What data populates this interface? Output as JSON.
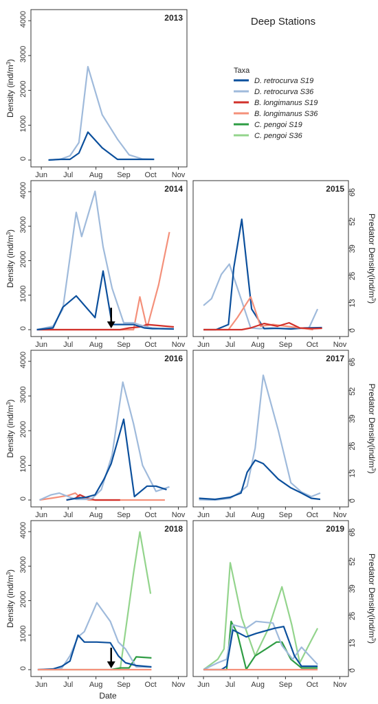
{
  "title": "Deep Stations",
  "legend": {
    "title": "Taxa",
    "placement": "right of top-left panel"
  },
  "axes": {
    "xlabel": "Date",
    "ylabel_left_main": "Density (ind/m",
    "ylabel_left_sup": "3",
    "ylabel_left_end": ")",
    "ylabel_right_main": "Predator Density(ind/m",
    "ylabel_right_sup": "3",
    "ylabel_right_end": ")",
    "month_ticks": [
      "Jun",
      "Jul",
      "Aug",
      "Sep",
      "Oct",
      "Nov"
    ],
    "left_ticks": [
      0,
      1000,
      2000,
      3000,
      4000
    ],
    "right_ticks": [
      0,
      13,
      26,
      39,
      52,
      66
    ],
    "left_ylim": [
      0,
      4200
    ],
    "right_ylim": [
      0,
      69.3
    ],
    "xlim_doy": [
      145,
      310
    ]
  },
  "colors": {
    "D. retrocurva S19": "#0b4f9c",
    "D. retrocurva S36": "#9fbadb",
    "B. longimanus S19": "#d1302a",
    "B. longimanus S36": "#f4907a",
    "C. pengoi S19": "#2e9c43",
    "C. pengoi S36": "#93d48c"
  },
  "chart_data": [
    {
      "type": "line",
      "title": "2013",
      "x_unit": "day of year",
      "right_axis": false,
      "arrow_x": null,
      "series": [
        {
          "name": "D. retrocurva S36",
          "x": [
            160,
            173,
            184,
            194,
            204,
            220,
            237,
            250,
            265,
            278
          ],
          "y": [
            0,
            20,
            120,
            500,
            2680,
            1300,
            600,
            150,
            30,
            20
          ]
        },
        {
          "name": "D. retrocurva S19",
          "x": [
            160,
            173,
            184,
            194,
            204,
            220,
            237,
            250,
            265,
            278
          ],
          "y": [
            0,
            20,
            20,
            200,
            800,
            350,
            20,
            20,
            20,
            20
          ]
        }
      ]
    },
    {
      "type": "line",
      "title": "2014",
      "x_unit": "day of year",
      "right_axis": false,
      "arrow_x": 230,
      "series": [
        {
          "name": "B. longimanus S36",
          "x": [
            147,
            160,
            180,
            200,
            220,
            240,
            255,
            262,
            270,
            283,
            295
          ],
          "y": [
            0,
            0,
            0,
            0,
            0,
            0,
            0,
            950,
            50,
            1300,
            2830
          ]
        },
        {
          "name": "B. longimanus S19",
          "x": [
            147,
            160,
            180,
            200,
            220,
            240,
            250,
            262,
            270,
            283,
            300
          ],
          "y": [
            0,
            0,
            0,
            0,
            0,
            0,
            50,
            80,
            150,
            120,
            80
          ]
        },
        {
          "name": "D. retrocurva S36",
          "x": [
            147,
            165,
            176,
            191,
            197,
            212,
            221,
            231,
            244,
            255,
            267,
            276,
            288,
            300
          ],
          "y": [
            0,
            100,
            600,
            3400,
            2700,
            4010,
            2400,
            1200,
            200,
            200,
            100,
            50,
            20,
            20
          ]
        },
        {
          "name": "D. retrocurva S19",
          "x": [
            147,
            165,
            176,
            191,
            212,
            221,
            231,
            244,
            255,
            267,
            276,
            288,
            300
          ],
          "y": [
            0,
            50,
            650,
            980,
            350,
            1700,
            150,
            150,
            150,
            50,
            30,
            30,
            20
          ]
        }
      ]
    },
    {
      "type": "line",
      "title": "2015",
      "x_unit": "day of year",
      "right_axis": true,
      "arrow_x": null,
      "series": [
        {
          "name": "D. retrocurva S36",
          "x": [
            152,
            161,
            172,
            181,
            194,
            205,
            215,
            229,
            241,
            256,
            270,
            280
          ],
          "y": [
            700,
            900,
            1600,
            1900,
            900,
            50,
            30,
            50,
            30,
            40,
            30,
            600
          ]
        },
        {
          "name": "D. retrocurva S19",
          "x": [
            152,
            166,
            180,
            186,
            195,
            206,
            220,
            235,
            250,
            265,
            285
          ],
          "y": [
            0,
            0,
            150,
            1800,
            3200,
            600,
            30,
            40,
            20,
            50,
            60
          ]
        },
        {
          "name": "B. longimanus S36",
          "x": [
            152,
            166,
            180,
            190,
            205,
            216,
            230,
            245,
            260,
            275
          ],
          "y": [
            0,
            0,
            0,
            350,
            950,
            100,
            150,
            100,
            50,
            0
          ]
        },
        {
          "name": "B. longimanus S19",
          "x": [
            152,
            166,
            180,
            195,
            205,
            220,
            235,
            248,
            260,
            275,
            285
          ],
          "y": [
            0,
            0,
            0,
            0,
            50,
            180,
            100,
            200,
            50,
            30,
            40
          ]
        }
      ]
    },
    {
      "type": "line",
      "title": "2016",
      "x_unit": "day of year",
      "right_axis": false,
      "arrow_x": null,
      "series": [
        {
          "name": "B. longimanus S36",
          "x": [
            150,
            165,
            182,
            190,
            195,
            205,
            210,
            230,
            250,
            270,
            290
          ],
          "y": [
            0,
            60,
            130,
            200,
            80,
            0,
            0,
            0,
            0,
            0,
            0
          ]
        },
        {
          "name": "B. longimanus S19",
          "x": [
            180,
            190,
            195,
            201,
            212,
            220,
            230,
            240
          ],
          "y": [
            0,
            50,
            150,
            80,
            0,
            0,
            0,
            0
          ]
        },
        {
          "name": "D. retrocurva S36",
          "x": [
            150,
            163,
            172,
            182,
            191,
            202,
            209,
            219,
            231,
            243,
            255,
            265,
            280,
            295
          ],
          "y": [
            0,
            150,
            200,
            100,
            20,
            20,
            50,
            300,
            1300,
            3400,
            2200,
            1000,
            250,
            380
          ]
        },
        {
          "name": "D. retrocurva S19",
          "x": [
            180,
            191,
            202,
            212,
            222,
            230,
            244,
            256,
            270,
            280,
            292
          ],
          "y": [
            0,
            50,
            80,
            150,
            600,
            1050,
            2330,
            100,
            400,
            400,
            300
          ]
        }
      ]
    },
    {
      "type": "line",
      "title": "2017",
      "x_unit": "day of year",
      "right_axis": true,
      "arrow_x": null,
      "series": [
        {
          "name": "D. retrocurva S36",
          "x": [
            147,
            165,
            182,
            194,
            201,
            210,
            219,
            236,
            250,
            262,
            273,
            283
          ],
          "y": [
            10,
            0,
            50,
            250,
            400,
            1500,
            3600,
            2000,
            500,
            230,
            100,
            200
          ]
        },
        {
          "name": "D. retrocurva S19",
          "x": [
            147,
            165,
            182,
            194,
            201,
            210,
            219,
            236,
            250,
            262,
            273,
            283
          ],
          "y": [
            50,
            20,
            80,
            200,
            800,
            1150,
            1050,
            600,
            350,
            200,
            50,
            20
          ]
        }
      ]
    },
    {
      "type": "line",
      "title": "2018",
      "x_unit": "day of year",
      "right_axis": false,
      "arrow_x": 230,
      "series": [
        {
          "name": "C. pengoi S36",
          "x": [
            150,
            165,
            180,
            200,
            230,
            240,
            255,
            262,
            274
          ],
          "y": [
            0,
            0,
            0,
            0,
            0,
            0,
            2800,
            3990,
            2200
          ]
        },
        {
          "name": "C. pengoi S19",
          "x": [
            230,
            240,
            250,
            258,
            275
          ],
          "y": [
            0,
            50,
            50,
            370,
            340
          ]
        },
        {
          "name": "D. retrocurva S36",
          "x": [
            148,
            165,
            175,
            184,
            193,
            200,
            214,
            229,
            238,
            246,
            258,
            275
          ],
          "y": [
            0,
            10,
            50,
            400,
            950,
            1100,
            1940,
            1400,
            800,
            600,
            80,
            80
          ]
        },
        {
          "name": "D. retrocurva S19",
          "x": [
            148,
            165,
            175,
            184,
            193,
            200,
            214,
            229,
            238,
            246,
            258,
            275
          ],
          "y": [
            0,
            20,
            100,
            250,
            1000,
            800,
            800,
            780,
            400,
            200,
            120,
            80
          ]
        },
        {
          "name": "B. longimanus S36",
          "x": [
            148,
            165,
            180,
            200,
            220,
            240,
            260,
            275
          ],
          "y": [
            0,
            0,
            0,
            0,
            0,
            0,
            0,
            0
          ]
        }
      ]
    },
    {
      "type": "line",
      "title": "2019",
      "x_unit": "day of year",
      "right_axis": true,
      "arrow_x": null,
      "series": [
        {
          "name": "C. pengoi S36",
          "x": [
            152,
            168,
            175,
            182,
            195,
            210,
            225,
            240,
            251,
            260,
            270,
            280
          ],
          "y": [
            0,
            300,
            600,
            3100,
            1500,
            400,
            1200,
            2400,
            1300,
            200,
            700,
            1200
          ]
        },
        {
          "name": "C. pengoi S19",
          "x": [
            172,
            178,
            183,
            190,
            200,
            210,
            222,
            234,
            240,
            250,
            262,
            280
          ],
          "y": [
            0,
            0,
            1400,
            1050,
            10,
            400,
            600,
            800,
            800,
            300,
            50,
            50
          ]
        },
        {
          "name": "D. retrocurva S36",
          "x": [
            152,
            168,
            178,
            185,
            200,
            211,
            230,
            240,
            252,
            262,
            280
          ],
          "y": [
            0,
            200,
            300,
            1300,
            1200,
            1400,
            1350,
            700,
            300,
            650,
            150
          ]
        },
        {
          "name": "D. retrocurva S19",
          "x": [
            152,
            172,
            178,
            185,
            200,
            211,
            232,
            242,
            254,
            262,
            280
          ],
          "y": [
            0,
            0,
            100,
            1150,
            950,
            1050,
            1200,
            1250,
            400,
            100,
            100
          ]
        },
        {
          "name": "B. longimanus S36",
          "x": [
            152,
            170,
            190,
            210,
            230,
            250,
            270,
            280
          ],
          "y": [
            0,
            0,
            0,
            0,
            0,
            0,
            0,
            0
          ]
        }
      ]
    }
  ],
  "legend_items": [
    "D. retrocurva S19",
    "D. retrocurva S36",
    "B. longimanus S19",
    "B. longimanus S36",
    "C. pengoi S19",
    "C. pengoi S36"
  ]
}
